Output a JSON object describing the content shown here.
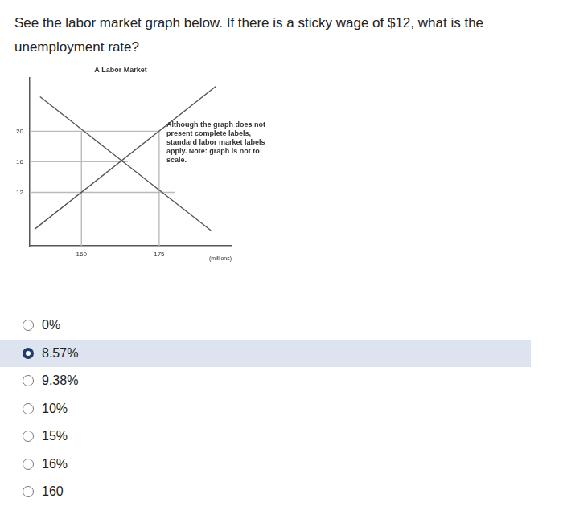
{
  "question": [
    "See the labor market graph below.  If there is a sticky wage of $12, what is the",
    "unemployment rate?"
  ],
  "chart_data": {
    "type": "line",
    "title": "A Labor Market",
    "x_label": "(millions)",
    "annotation": "Although the graph does not present complete labels, standard labor market labels apply. Note: graph is not to scale.",
    "xlim": [
      150,
      189
    ],
    "ylim": [
      5,
      27
    ],
    "xticks": [
      160,
      175
    ],
    "yticks": [
      12,
      16,
      20
    ],
    "grid": false,
    "series": [
      {
        "color": "#555555",
        "x": [
          152,
          185
        ],
        "values": [
          24.5,
          7
        ]
      },
      {
        "color": "#555555",
        "x": [
          151,
          186
        ],
        "values": [
          7.2,
          25.9
        ]
      },
      {
        "color": "#bbbbbb",
        "x": [
          150,
          175
        ],
        "values": [
          20,
          20
        ]
      },
      {
        "color": "#bbbbbb",
        "x": [
          150,
          169
        ],
        "values": [
          16,
          16
        ]
      },
      {
        "color": "#bbbbbb",
        "x": [
          150,
          178
        ],
        "values": [
          12,
          12
        ]
      },
      {
        "color": "#bbbbbb",
        "x": [
          160,
          160
        ],
        "values": [
          5,
          20
        ]
      },
      {
        "color": "#bbbbbb",
        "x": [
          175,
          175
        ],
        "values": [
          5,
          20
        ]
      }
    ]
  },
  "options": [
    "0%",
    "8.57%",
    "9.38%",
    "10%",
    "15%",
    "16%",
    "160"
  ],
  "selected": "8.57%"
}
